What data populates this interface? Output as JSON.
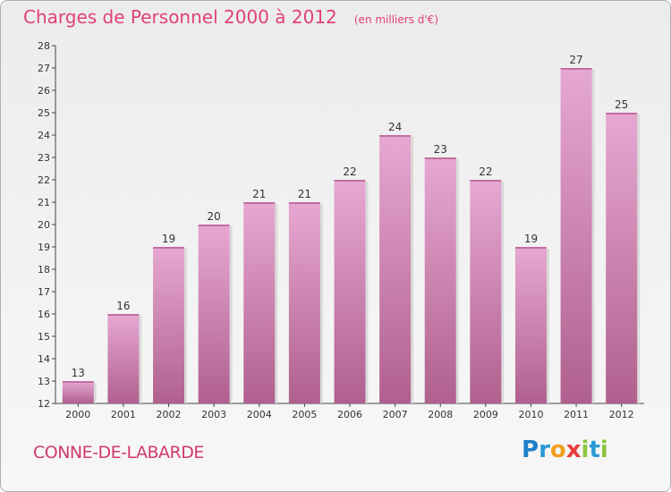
{
  "header": {
    "title": "Charges de Personnel 2000 à 2012",
    "subtitle": "(en milliers d'€)"
  },
  "footer": {
    "commune": "CONNE-DE-LABARDE",
    "brand_letters": [
      {
        "ch": "P",
        "color": "#1f7fc8"
      },
      {
        "ch": "r",
        "color": "#2a9ad6"
      },
      {
        "ch": "o",
        "color": "#f0a020"
      },
      {
        "ch": "x",
        "color": "#e83c3c"
      },
      {
        "ch": "i",
        "color": "#8cc63f"
      },
      {
        "ch": "t",
        "color": "#2a9ad6"
      },
      {
        "ch": "i",
        "color": "#8cc63f"
      }
    ]
  },
  "chart_data": {
    "type": "bar",
    "title": "Charges de Personnel 2000 à 2012",
    "subtitle": "(en milliers d'€)",
    "categories": [
      "2000",
      "2001",
      "2002",
      "2003",
      "2004",
      "2005",
      "2006",
      "2007",
      "2008",
      "2009",
      "2010",
      "2011",
      "2012"
    ],
    "values": [
      13,
      16,
      19,
      20,
      21,
      21,
      22,
      24,
      23,
      22,
      19,
      27,
      25
    ],
    "ylim": [
      12,
      28
    ],
    "yticks": [
      12,
      13,
      14,
      15,
      16,
      17,
      18,
      19,
      20,
      21,
      22,
      23,
      24,
      25,
      26,
      27,
      28
    ],
    "grid": false,
    "bar_color_top": "#e6a8d2",
    "bar_color_bottom": "#b0608e"
  }
}
